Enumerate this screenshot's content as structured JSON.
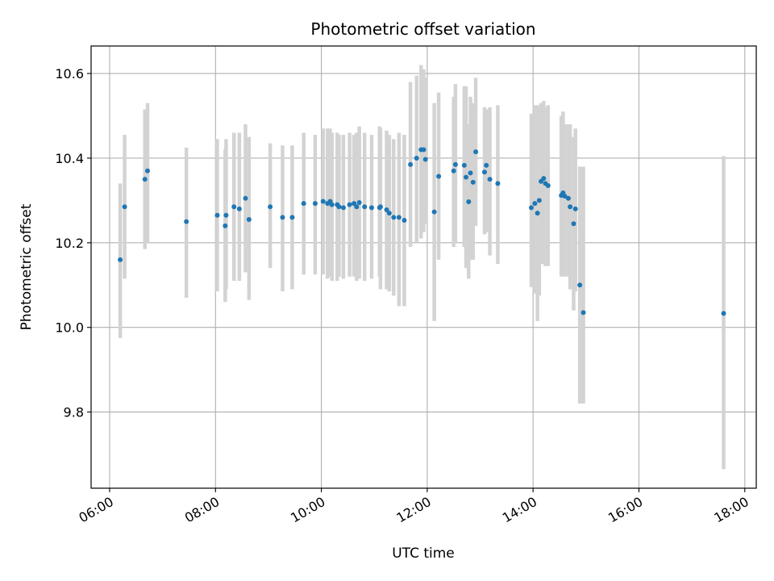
{
  "chart_data": {
    "type": "scatter",
    "title": "Photometric offset variation",
    "xlabel": "UTC time",
    "ylabel": "Photometric offset",
    "x_ticks": [
      "06:00",
      "08:00",
      "10:00",
      "12:00",
      "14:00",
      "16:00",
      "18:00"
    ],
    "y_ticks": [
      "9.8",
      "10.0",
      "10.2",
      "10.4",
      "10.6"
    ],
    "xlim": [
      "05:39",
      "18:13"
    ],
    "ylim": [
      9.62,
      10.665
    ],
    "grid": true,
    "colors": {
      "points": "#1f77b4",
      "error_bars": "#d3d3d3",
      "grid": "#b0b0b0"
    },
    "series": [
      {
        "x": [
          "06:12",
          "06:17",
          "06:40",
          "06:43",
          "07:27",
          "08:02",
          "08:11",
          "08:12",
          "08:21",
          "08:27",
          "08:34",
          "08:38",
          "09:02",
          "09:16",
          "09:27",
          "09:40",
          "09:53",
          "10:02",
          "10:07",
          "10:10",
          "10:12",
          "10:18",
          "10:20",
          "10:25",
          "10:32",
          "10:37",
          "10:40",
          "10:43",
          "10:49",
          "10:57",
          "11:06",
          "11:07",
          "11:14",
          "11:17",
          "11:22",
          "11:28",
          "11:34",
          "11:41",
          "11:48",
          "11:53",
          "11:56",
          "11:58",
          "12:08",
          "12:13",
          "12:30",
          "12:32",
          "12:42",
          "12:44",
          "12:47",
          "12:49",
          "12:52",
          "12:55",
          "13:05",
          "13:07",
          "13:11",
          "13:20",
          "13:58",
          "14:02",
          "14:05",
          "14:07",
          "14:09",
          "14:12",
          "14:14",
          "14:17",
          "14:32",
          "14:34",
          "14:36",
          "14:40",
          "14:42",
          "14:46",
          "14:48",
          "14:53",
          "14:57",
          "17:36"
        ],
        "y": [
          10.16,
          10.285,
          10.35,
          10.37,
          10.25,
          10.265,
          10.24,
          10.265,
          10.285,
          10.28,
          10.305,
          10.255,
          10.285,
          10.26,
          10.26,
          10.293,
          10.293,
          10.298,
          10.293,
          10.298,
          10.29,
          10.29,
          10.285,
          10.283,
          10.29,
          10.293,
          10.285,
          10.295,
          10.285,
          10.283,
          10.283,
          10.285,
          10.278,
          10.27,
          10.26,
          10.26,
          10.253,
          10.385,
          10.4,
          10.42,
          10.42,
          10.397,
          10.273,
          10.357,
          10.37,
          10.385,
          10.383,
          10.355,
          10.297,
          10.365,
          10.343,
          10.415,
          10.367,
          10.383,
          10.35,
          10.34,
          10.283,
          10.293,
          10.27,
          10.3,
          10.345,
          10.352,
          10.34,
          10.335,
          10.312,
          10.318,
          10.31,
          10.305,
          10.285,
          10.245,
          10.28,
          10.1,
          10.035,
          10.033
        ],
        "err_low": [
          9.975,
          10.115,
          10.185,
          10.2,
          10.07,
          10.085,
          10.06,
          10.09,
          10.11,
          10.11,
          10.13,
          10.065,
          10.14,
          10.085,
          10.09,
          10.125,
          10.125,
          10.125,
          10.115,
          10.12,
          10.11,
          10.11,
          10.12,
          10.115,
          10.12,
          10.12,
          10.11,
          10.115,
          10.11,
          10.115,
          10.12,
          10.09,
          10.09,
          10.085,
          10.075,
          10.05,
          10.05,
          10.19,
          10.2,
          10.21,
          10.225,
          10.245,
          10.015,
          10.16,
          10.19,
          10.2,
          10.19,
          10.14,
          10.115,
          10.16,
          10.16,
          10.24,
          10.22,
          10.225,
          10.17,
          10.15,
          10.095,
          10.08,
          10.015,
          10.075,
          10.15,
          10.15,
          10.145,
          10.145,
          10.12,
          10.125,
          10.12,
          10.12,
          10.09,
          10.04,
          10.085,
          9.82,
          9.82,
          9.665
        ],
        "err_high": [
          10.34,
          10.455,
          10.515,
          10.53,
          10.425,
          10.445,
          10.42,
          10.445,
          10.46,
          10.46,
          10.48,
          10.45,
          10.435,
          10.43,
          10.43,
          10.46,
          10.455,
          10.47,
          10.47,
          10.47,
          10.46,
          10.46,
          10.455,
          10.455,
          10.46,
          10.455,
          10.46,
          10.475,
          10.46,
          10.455,
          10.475,
          10.47,
          10.465,
          10.455,
          10.445,
          10.46,
          10.455,
          10.58,
          10.595,
          10.62,
          10.61,
          10.59,
          10.53,
          10.555,
          10.545,
          10.575,
          10.57,
          10.57,
          10.48,
          10.545,
          10.53,
          10.59,
          10.52,
          10.515,
          10.52,
          10.525,
          10.505,
          10.525,
          10.525,
          10.52,
          10.53,
          10.535,
          10.52,
          10.525,
          10.5,
          10.51,
          10.48,
          10.48,
          10.48,
          10.45,
          10.47,
          10.38,
          10.38,
          10.405
        ]
      }
    ]
  }
}
